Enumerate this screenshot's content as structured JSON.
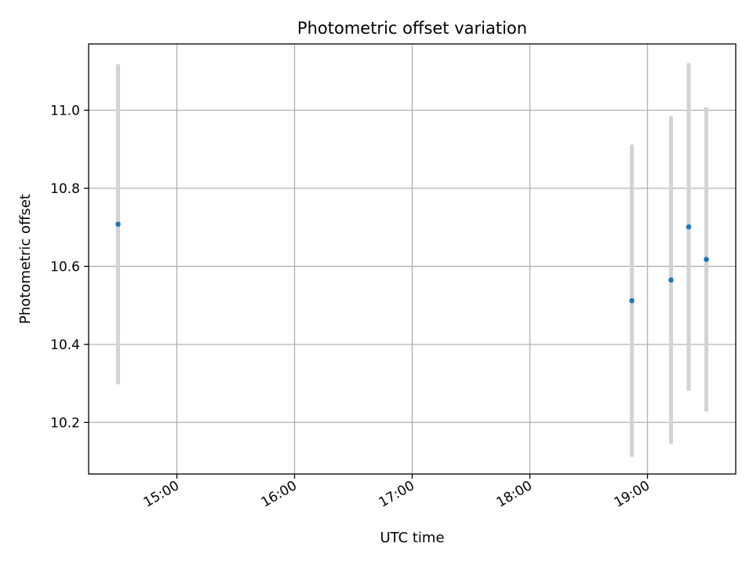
{
  "chart_data": {
    "type": "scatter",
    "title": "Photometric offset variation",
    "xlabel": "UTC time",
    "ylabel": "Photometric offset",
    "x_tick_labels": [
      "15:00",
      "16:00",
      "17:00",
      "18:00",
      "19:00"
    ],
    "y_tick_labels": [
      "10.2",
      "10.4",
      "10.6",
      "10.8",
      "11.0"
    ],
    "xlim": [
      "14:15",
      "19:45"
    ],
    "ylim": [
      10.068,
      11.17
    ],
    "grid": true,
    "series": [
      {
        "points": [
          {
            "x": "14:30",
            "y": 10.708,
            "err": 0.41
          },
          {
            "x": "18:52",
            "y": 10.512,
            "err": 0.4
          },
          {
            "x": "19:12",
            "y": 10.565,
            "err": 0.42
          },
          {
            "x": "19:21",
            "y": 10.701,
            "err": 0.42
          },
          {
            "x": "19:30",
            "y": 10.618,
            "err": 0.39
          }
        ]
      }
    ],
    "colors": {
      "marker": "#1f77b4",
      "errorbar": "#d3d3d3",
      "grid": "#b0b0b0"
    }
  }
}
